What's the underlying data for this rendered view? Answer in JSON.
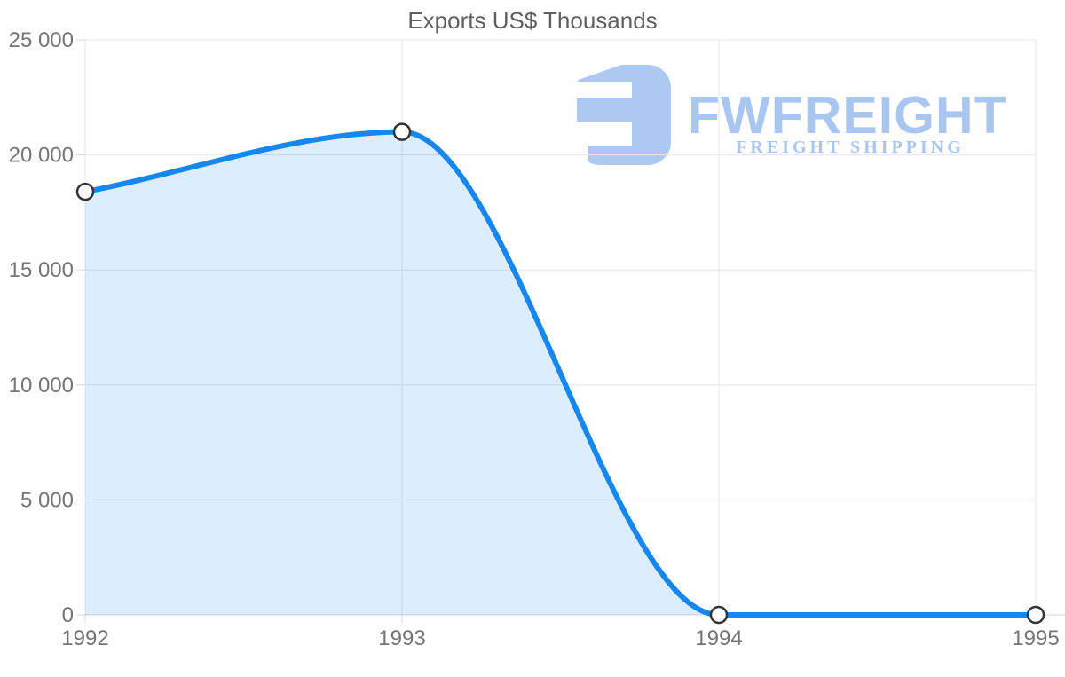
{
  "page": {
    "background": "#ffffff"
  },
  "watermark": {
    "brand": "FWFREIGHT",
    "tagline": "FREIGHT SHIPPING",
    "color": "#a9c6f0",
    "mark_color": "#adc9f1"
  },
  "chart_data": {
    "type": "area",
    "title": "Exports US$ Thousands",
    "xlabel": "",
    "ylabel": "",
    "categories": [
      "1992",
      "1993",
      "1994",
      "1995"
    ],
    "x": [
      1992,
      1993,
      1994,
      1995
    ],
    "series": [
      {
        "name": "Exports US$ Thousands",
        "values": [
          18400,
          21000,
          0,
          0
        ]
      }
    ],
    "ylim": [
      0,
      25000
    ],
    "y_tick_interval": 5000,
    "y_tick_labels": [
      "0",
      "5 000",
      "10 000",
      "15 000",
      "20 000",
      "25 000"
    ],
    "grid": true,
    "legend": "none",
    "smooth": true,
    "line_color": "#1787f0",
    "line_width": 6,
    "fill_color": "rgba(23,135,240,0.15)",
    "marker": {
      "radius": 9,
      "fill": "#ffffff",
      "stroke": "#333333",
      "stroke_width": 2.5
    },
    "grid_color": "#e6e6e6",
    "axis_line_color": "#d6d6d6",
    "axis_label_color": "#757575",
    "title_color": "#5f5f5f"
  }
}
